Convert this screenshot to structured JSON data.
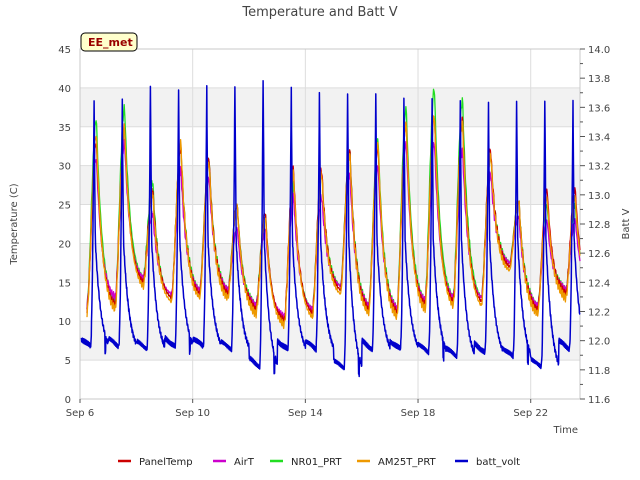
{
  "chart_data": {
    "type": "line",
    "title": "Temperature and Batt V",
    "xlabel": "Time",
    "ylabel": "Temperature (C)",
    "y2label": "Batt V",
    "station_tag": "EE_met",
    "x_unit": "day of September",
    "xlim": [
      6.0,
      23.75
    ],
    "ylim": [
      0,
      45
    ],
    "y2lim": [
      11.6,
      14.0
    ],
    "x_ticks": [
      {
        "value": 6,
        "label": "Sep 6"
      },
      {
        "value": 10,
        "label": "Sep 10"
      },
      {
        "value": 14,
        "label": "Sep 14"
      },
      {
        "value": 18,
        "label": "Sep 18"
      },
      {
        "value": 22,
        "label": "Sep 22"
      }
    ],
    "y_ticks": [
      "0",
      "5",
      "10",
      "15",
      "20",
      "25",
      "30",
      "35",
      "40",
      "45"
    ],
    "y2_ticks": [
      "11.6",
      "11.8",
      "12.0",
      "12.2",
      "12.4",
      "12.6",
      "12.8",
      "13.0",
      "13.2",
      "13.4",
      "13.6",
      "13.8",
      "14.0"
    ],
    "grid": true,
    "legend_position": "bottom",
    "colors": {
      "PanelTemp": "#cc0000",
      "AirT": "#cc00cc",
      "NR01_PRT": "#22dd22",
      "AM25T_PRT": "#ee9900",
      "batt_volt": "#0000cc"
    },
    "legend": [
      "PanelTemp",
      "AirT",
      "NR01_PRT",
      "AM25T_PRT",
      "batt_volt"
    ],
    "days": [
      6,
      7,
      8,
      9,
      10,
      11,
      12,
      13,
      14,
      15,
      16,
      17,
      18,
      19,
      20,
      21,
      22,
      23
    ],
    "series": [
      {
        "name": "PanelTemp",
        "axis": "left",
        "daily_min": [
          11.5,
          12.0,
          15.0,
          13.0,
          13.5,
          13.5,
          11.5,
          10.0,
          11.0,
          14.0,
          11.5,
          11.0,
          12.0,
          12.5,
          12.5,
          17.0,
          11.5,
          13.5
        ],
        "daily_max": [
          33.0,
          35.0,
          27.0,
          32.5,
          31.0,
          25.0,
          24.0,
          29.5,
          29.5,
          32.0,
          32.5,
          35.5,
          36.5,
          36.0,
          32.0,
          25.5,
          27.0,
          27.0
        ]
      },
      {
        "name": "AirT",
        "axis": "left",
        "daily_min": [
          12.0,
          13.0,
          15.5,
          13.5,
          14.0,
          14.0,
          12.0,
          10.5,
          11.5,
          14.5,
          12.0,
          11.5,
          12.5,
          13.0,
          13.0,
          17.5,
          12.0,
          14.0
        ],
        "daily_max": [
          31.0,
          33.0,
          24.0,
          29.5,
          28.5,
          22.0,
          22.0,
          26.0,
          26.0,
          29.0,
          30.0,
          33.0,
          33.0,
          32.0,
          29.0,
          23.5,
          23.0,
          23.0
        ]
      },
      {
        "name": "NR01_PRT",
        "axis": "left",
        "daily_min": [
          12.0,
          12.5,
          15.5,
          13.0,
          14.0,
          14.0,
          12.0,
          10.0,
          11.5,
          14.5,
          12.0,
          11.5,
          12.5,
          13.0,
          13.0,
          17.5,
          12.0,
          14.0
        ],
        "daily_max": [
          36.0,
          37.5,
          28.0,
          32.5,
          31.0,
          25.0,
          24.0,
          27.5,
          29.0,
          32.0,
          33.5,
          37.5,
          40.0,
          38.5,
          31.5,
          25.5,
          25.0,
          25.0
        ]
      },
      {
        "name": "AM25T_PRT",
        "axis": "left",
        "daily_min": [
          11.0,
          11.5,
          14.5,
          12.5,
          13.0,
          13.0,
          11.0,
          9.5,
          10.5,
          13.5,
          11.0,
          10.5,
          11.5,
          12.0,
          12.0,
          16.5,
          11.0,
          13.0
        ],
        "daily_max": [
          34.0,
          35.0,
          26.5,
          33.0,
          30.5,
          25.0,
          23.5,
          29.0,
          29.0,
          31.5,
          33.0,
          35.5,
          36.5,
          35.5,
          31.5,
          25.5,
          26.0,
          26.0
        ]
      },
      {
        "name": "batt_volt",
        "axis": "right",
        "daily_min": [
          11.92,
          11.92,
          11.9,
          11.92,
          11.92,
          11.9,
          11.78,
          11.9,
          11.9,
          11.77,
          11.9,
          11.9,
          11.88,
          11.85,
          11.88,
          11.85,
          11.78,
          11.9
        ],
        "daily_max": [
          13.64,
          13.64,
          13.74,
          13.72,
          13.74,
          13.75,
          13.79,
          13.74,
          13.72,
          13.7,
          13.7,
          13.68,
          13.66,
          13.65,
          13.64,
          13.63,
          13.64,
          13.64
        ]
      }
    ]
  }
}
